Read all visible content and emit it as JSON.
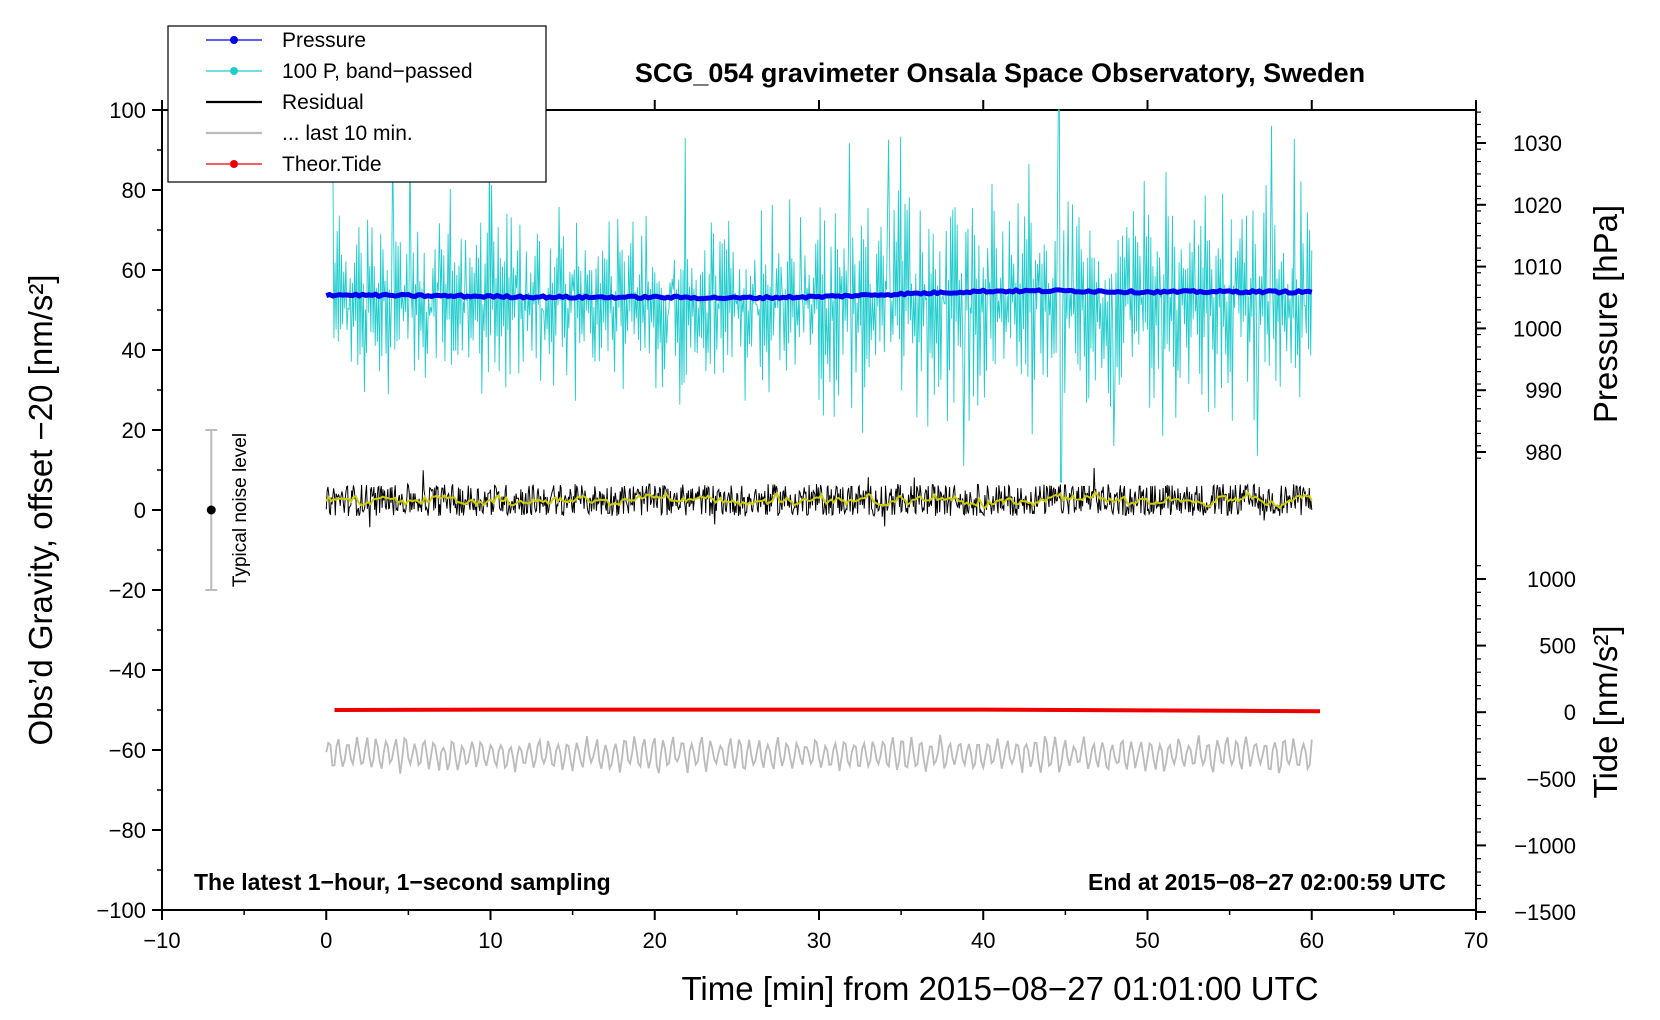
{
  "chart_data": {
    "type": "line",
    "title": "SCG_054 gravimeter Onsala Space Observatory, Sweden",
    "xlabel": "Time [min] from 2015−08−27 01:01:00 UTC",
    "ylabel_left": "Obs’d Gravity, offset −20 [nm/s²]",
    "ylabel_right_top": "Pressure [hPa]",
    "ylabel_right_bottom": "Tide [nm/s²]",
    "xlim": [
      -10,
      70
    ],
    "ylim": [
      -100,
      100
    ],
    "xticks": [
      -10,
      0,
      10,
      20,
      30,
      40,
      50,
      60,
      70
    ],
    "yticks": [
      -100,
      -80,
      -60,
      -40,
      -20,
      0,
      20,
      40,
      60,
      80,
      100
    ],
    "pressure_axis": {
      "ticks": [
        980,
        990,
        1000,
        1010,
        1020,
        1030
      ],
      "unit": "hPa"
    },
    "tide_axis": {
      "ticks": [
        -1500,
        -1000,
        -500,
        0,
        500,
        1000
      ],
      "unit": "nm/s²"
    },
    "annotation_left": "The latest 1−hour, 1−second sampling",
    "annotation_right": "End at 2015−08−27 02:00:59 UTC",
    "noise_label": "Typical noise level",
    "noise_bar": {
      "x": -7,
      "center": 0,
      "low": -20,
      "high": 20
    },
    "legend": [
      {
        "label": "Pressure",
        "color": "#0000ee",
        "marker": true
      },
      {
        "label": "100 P, band−passed",
        "color": "#22cccc",
        "marker": true
      },
      {
        "label": "Residual",
        "color": "#000000",
        "marker": false
      },
      {
        "label": "... last 10 min.",
        "color": "#bbbbbb",
        "marker": false
      },
      {
        "label": "Theor.Tide",
        "color": "#ee0000",
        "marker": true
      }
    ],
    "series": [
      {
        "name": "Pressure",
        "color": "#0000ee",
        "x": [
          0,
          5,
          10,
          15,
          20,
          25,
          30,
          35,
          40,
          45,
          50,
          55,
          60
        ],
        "values": [
          53.8,
          53.6,
          53.4,
          53.2,
          53.2,
          53.0,
          53.3,
          54.0,
          54.7,
          54.8,
          54.5,
          54.6,
          54.5
        ]
      },
      {
        "name": "100 P, band−passed",
        "color": "#22cccc",
        "x_start": 0.4,
        "x_end": 60,
        "center": 52,
        "amplitude": 15
      },
      {
        "name": "Residual",
        "color": "#000000",
        "x_start": 0,
        "x_end": 60,
        "center": 2.5,
        "amplitude": 4
      },
      {
        "name": "... last 10 min.",
        "color": "#bbbbbb",
        "x_start": 0,
        "x_end": 60,
        "center": -61,
        "amplitude": 4
      },
      {
        "name": "Theor.Tide",
        "color": "#ee0000",
        "x": [
          0.5,
          10,
          20,
          30,
          40,
          45,
          50,
          55,
          60.5
        ],
        "values": [
          -50.0,
          -49.9,
          -49.9,
          -49.9,
          -49.9,
          -50.0,
          -50.1,
          -50.2,
          -50.3
        ]
      }
    ]
  }
}
